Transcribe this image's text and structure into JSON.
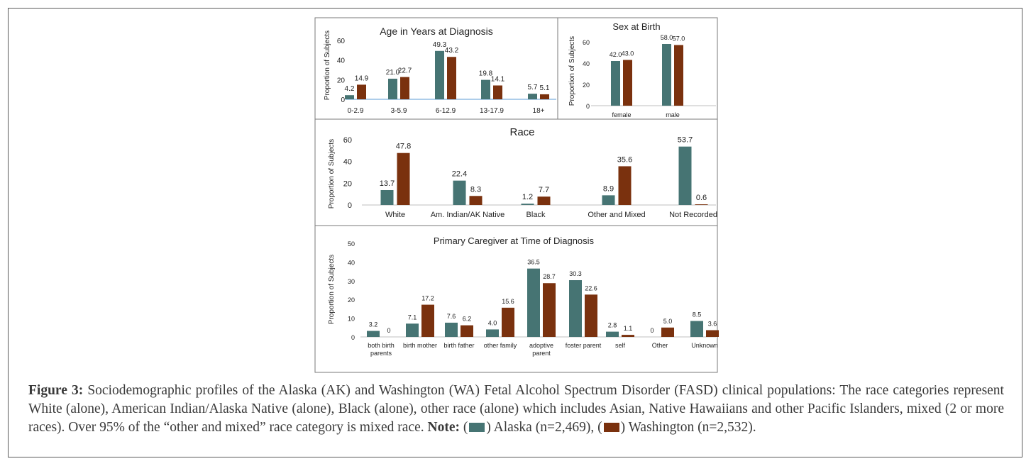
{
  "colors": {
    "alaska": "#467473",
    "washington": "#7a310e"
  },
  "chart_data": [
    {
      "type": "bar",
      "title": "Age in Years at Diagnosis",
      "ylabel": "Proportion of Subjects",
      "categories": [
        "0-2.9",
        "3-5.9",
        "6-12.9",
        "13-17.9",
        "18+"
      ],
      "yticks": [
        0,
        20,
        40,
        60
      ],
      "ylim": [
        0,
        60
      ],
      "series": [
        {
          "values": [
            4.2,
            21.0,
            49.3,
            19.8,
            5.7
          ]
        },
        {
          "values": [
            14.9,
            22.7,
            43.2,
            14.1,
            5.1
          ]
        }
      ]
    },
    {
      "type": "bar",
      "title": "Sex at Birth",
      "ylabel": "Proportion of Subjects",
      "categories": [
        "female",
        "male"
      ],
      "yticks": [
        0,
        20,
        40,
        60
      ],
      "ylim": [
        0,
        60
      ],
      "series": [
        {
          "values": [
            42.0,
            58.0
          ]
        },
        {
          "values": [
            43.0,
            57.0
          ]
        }
      ]
    },
    {
      "type": "bar",
      "title": "Race",
      "ylabel": "Proportion of Subjects",
      "categories": [
        "White",
        "Am. Indian/AK Native",
        "Black",
        "Other and Mixed",
        "Not Recorded"
      ],
      "yticks": [
        0,
        20,
        40,
        60
      ],
      "ylim": [
        0,
        60
      ],
      "series": [
        {
          "values": [
            13.7,
            22.4,
            1.2,
            8.9,
            53.7
          ]
        },
        {
          "values": [
            47.8,
            8.3,
            7.7,
            35.6,
            0.6
          ]
        }
      ]
    },
    {
      "type": "bar",
      "title": "Primary Caregiver at Time of Diagnosis",
      "ylabel": "Proportion of Subjects",
      "categories": [
        [
          "both birth",
          "parents"
        ],
        [
          "birth mother"
        ],
        [
          "birth father"
        ],
        [
          "other family"
        ],
        [
          "adoptive",
          "parent"
        ],
        [
          "foster parent"
        ],
        [
          "self"
        ],
        [
          "Other"
        ],
        [
          "Unknown"
        ]
      ],
      "yticks": [
        0,
        10,
        20,
        30,
        40,
        50
      ],
      "ylim": [
        0,
        50
      ],
      "series": [
        {
          "values": [
            3.2,
            7.1,
            7.6,
            4.0,
            36.5,
            30.3,
            2.8,
            0,
            8.5
          ]
        },
        {
          "values": [
            0,
            17.2,
            6.2,
            15.6,
            28.7,
            22.6,
            1.1,
            5.0,
            3.6
          ]
        }
      ]
    }
  ],
  "caption": {
    "label": "Figure 3:",
    "text": " Sociodemographic profiles of the Alaska (AK) and Washington (WA) Fetal Alcohol Spectrum Disorder (FASD) clinical populations: The race categories represent White (alone), American Indian/Alaska Native (alone), Black (alone), other race (alone) which includes Asian, Native Hawaiians and other Pacific Islanders, mixed (2 or more races). Over 95% of the “other and mixed” race category is mixed race. ",
    "note_label": "Note:",
    "legend_open_1": " (",
    "legend_text_1": ") Alaska (n=2,469), (",
    "legend_text_2": ") Washington (n=2,532)."
  }
}
